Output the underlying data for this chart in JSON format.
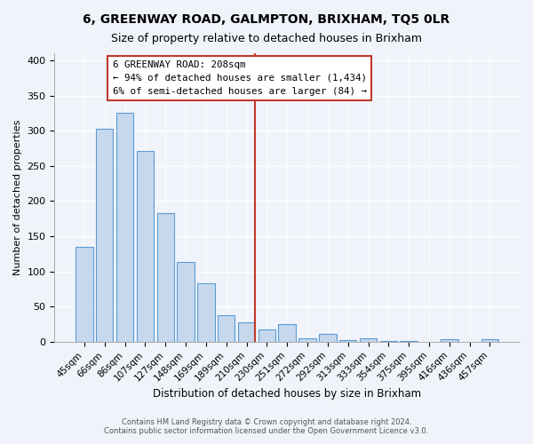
{
  "title": "6, GREENWAY ROAD, GALMPTON, BRIXHAM, TQ5 0LR",
  "subtitle": "Size of property relative to detached houses in Brixham",
  "xlabel": "Distribution of detached houses by size in Brixham",
  "ylabel": "Number of detached properties",
  "bar_labels": [
    "45sqm",
    "66sqm",
    "86sqm",
    "107sqm",
    "127sqm",
    "148sqm",
    "169sqm",
    "189sqm",
    "210sqm",
    "230sqm",
    "251sqm",
    "272sqm",
    "292sqm",
    "313sqm",
    "333sqm",
    "354sqm",
    "375sqm",
    "395sqm",
    "416sqm",
    "436sqm",
    "457sqm"
  ],
  "bar_values": [
    135,
    303,
    325,
    271,
    183,
    113,
    83,
    38,
    27,
    18,
    25,
    5,
    11,
    2,
    5,
    1,
    1,
    0,
    3,
    0,
    3
  ],
  "bar_color": "#c5d8ed",
  "bar_edge_color": "#5b9bd5",
  "vline_position": 8.425,
  "vline_color": "#c0392b",
  "annotation_text": "6 GREENWAY ROAD: 208sqm\n← 94% of detached houses are smaller (1,434)\n6% of semi-detached houses are larger (84) →",
  "annotation_box_color": "#ffffff",
  "annotation_box_edge": "#c0392b",
  "footer_line1": "Contains HM Land Registry data © Crown copyright and database right 2024.",
  "footer_line2": "Contains public sector information licensed under the Open Government Licence v3.0.",
  "ylim": [
    0,
    410
  ],
  "background_color": "#f0f4fa"
}
